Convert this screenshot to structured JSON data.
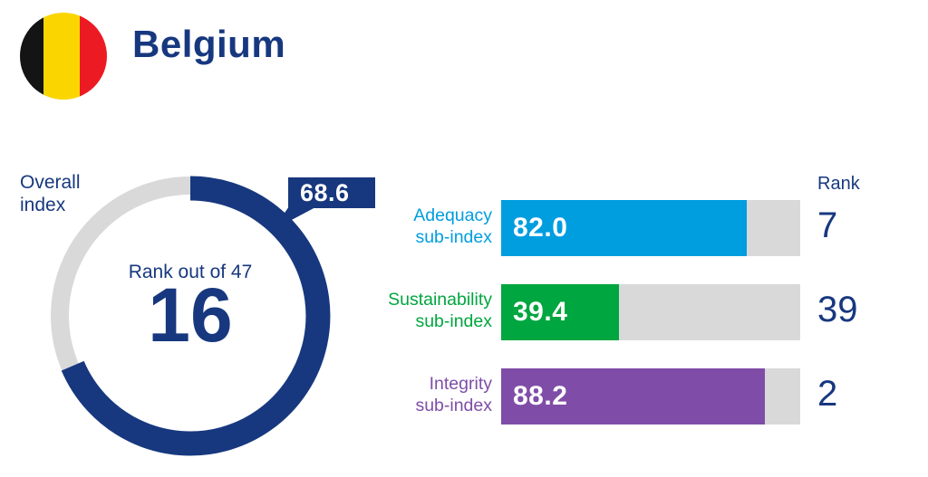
{
  "header": {
    "country": "Belgium",
    "flag_colors": {
      "black": "#141414",
      "yellow": "#FBD500",
      "red": "#EC1B23"
    }
  },
  "colors": {
    "navy": "#17387F",
    "track_gray": "#D9D9D9",
    "adequacy_blue": "#009DDF",
    "sustainability_green": "#00A63F",
    "integrity_purple": "#7F4DA8"
  },
  "donut": {
    "label": "Overall index",
    "value": 68.6,
    "value_display": "68.6",
    "rank_caption": "Rank out of 47",
    "rank": 16,
    "rank_out_of": 47
  },
  "subindices": {
    "rank_header": "Rank",
    "rows": [
      {
        "label_line1": "Adequacy",
        "label_line2": "sub-index",
        "value": 82.0,
        "value_display": "82.0",
        "rank": 7,
        "color": "#009DDF"
      },
      {
        "label_line1": "Sustainability",
        "label_line2": "sub-index",
        "value": 39.4,
        "value_display": "39.4",
        "rank": 39,
        "color": "#00A63F"
      },
      {
        "label_line1": "Integrity",
        "label_line2": "sub-index",
        "value": 88.2,
        "value_display": "88.2",
        "rank": 2,
        "color": "#7F4DA8"
      }
    ]
  },
  "chart_data": {
    "type": "bar",
    "title": "Belgium",
    "overall": {
      "label": "Overall index",
      "value": 68.6,
      "rank": 16,
      "rank_out_of": 47
    },
    "categories": [
      "Adequacy sub-index",
      "Sustainability sub-index",
      "Integrity sub-index"
    ],
    "values": [
      82.0,
      39.4,
      88.2
    ],
    "ranks": [
      7,
      39,
      2
    ],
    "xlim": [
      0,
      100
    ],
    "colors": [
      "#009DDF",
      "#00A63F",
      "#7F4DA8"
    ],
    "legend": false,
    "notes": "Donut gauge shows overall index 68.6 of 100 (navy arc on gray ring, starting 12 o'clock clockwise); each sub-index bar is filled to its value out of 100 with rank listed at right."
  }
}
